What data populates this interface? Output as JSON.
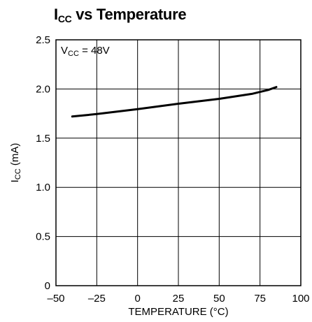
{
  "chart_data": {
    "type": "line",
    "title": {
      "main": "I",
      "sub": "CC",
      "rest": " vs Temperature"
    },
    "xlabel": "TEMPERATURE (°C)",
    "ylabel": {
      "main": "I",
      "sub": "CC",
      "rest": " (mA)"
    },
    "annotation": {
      "main": "V",
      "sub": "CC",
      "rest": " = 48V"
    },
    "xlim": [
      -50,
      100
    ],
    "ylim": [
      0,
      2.5
    ],
    "xticks": [
      -50,
      -25,
      0,
      25,
      50,
      75,
      100
    ],
    "xtick_labels": [
      "–50",
      "–25",
      "0",
      "25",
      "50",
      "75",
      "100"
    ],
    "yticks": [
      0,
      0.5,
      1.0,
      1.5,
      2.0,
      2.5
    ],
    "ytick_labels": [
      "0",
      "0.5",
      "1.0",
      "1.5",
      "2.0",
      "2.5"
    ],
    "grid": true,
    "series": [
      {
        "x": [
          -40,
          -25,
          0,
          25,
          50,
          70,
          75,
          80,
          85
        ],
        "y": [
          1.72,
          1.745,
          1.795,
          1.85,
          1.9,
          1.95,
          1.97,
          1.99,
          2.02
        ]
      }
    ],
    "colors": {
      "line": "#000000",
      "grid": "#000000"
    }
  }
}
